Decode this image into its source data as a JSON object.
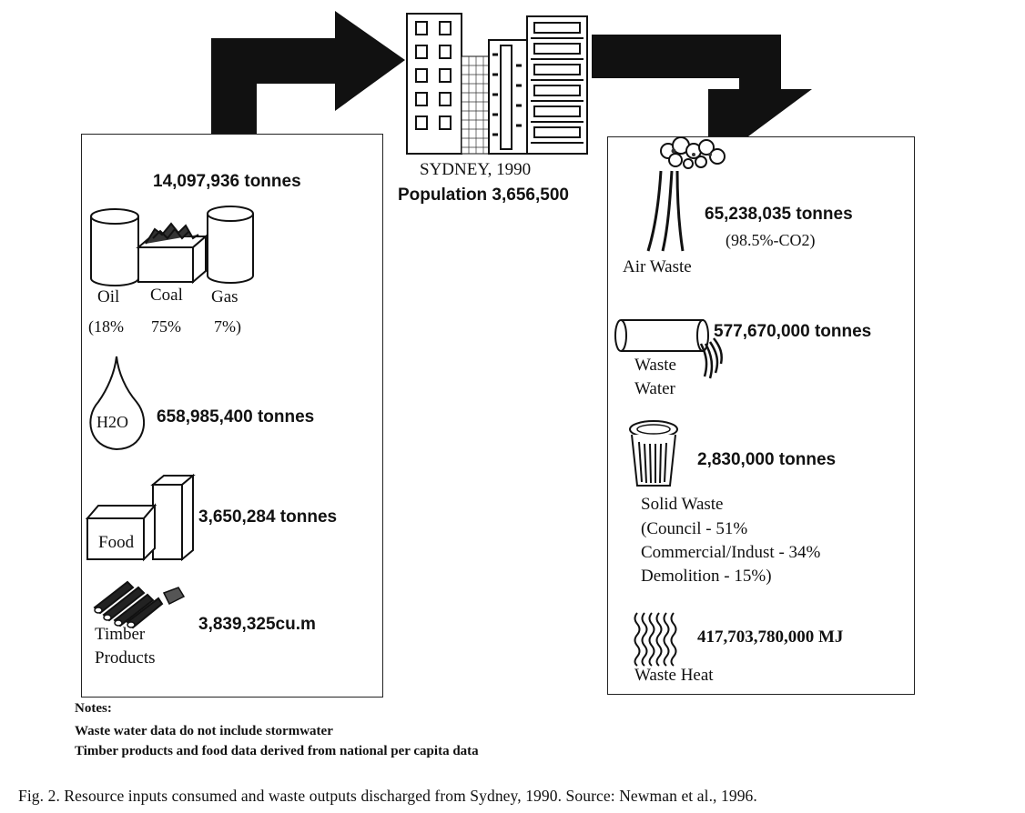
{
  "city": {
    "name": "SYDNEY, 1990",
    "population": "Population 3,656,500"
  },
  "inputs": {
    "energy": {
      "amount": "14,097,936 tonnes",
      "labels": [
        "Oil",
        "Coal",
        "Gas"
      ],
      "shares": [
        "(18%",
        "75%",
        "7%)"
      ]
    },
    "water": {
      "symbol": "H2O",
      "amount": "658,985,400 tonnes"
    },
    "food": {
      "label": "Food",
      "amount": "3,650,284 tonnes"
    },
    "timber": {
      "label_line1": "Timber",
      "label_line2": "Products",
      "amount": "3,839,325cu.m"
    }
  },
  "outputs": {
    "air": {
      "amount": "65,238,035 tonnes",
      "note": "(98.5%-CO2)",
      "label": "Air Waste"
    },
    "water": {
      "amount": "577,670,000 tonnes",
      "label_line1": "Waste",
      "label_line2": "Water"
    },
    "solid": {
      "amount": "2,830,000 tonnes",
      "label": "Solid Waste",
      "breakdown": [
        "(Council - 51%",
        "Commercial/Indust - 34%",
        "Demolition - 15%)"
      ]
    },
    "heat": {
      "amount": "417,703,780,000 MJ",
      "label": "Waste Heat"
    }
  },
  "notes": {
    "title": "Notes:",
    "lines": [
      "Waste water data do not include stormwater",
      "Timber products and food data derived from national per capita data"
    ]
  },
  "caption": "Fig. 2.  Resource inputs consumed and waste outputs discharged from Sydney, 1990. Source: Newman et al., 1996."
}
